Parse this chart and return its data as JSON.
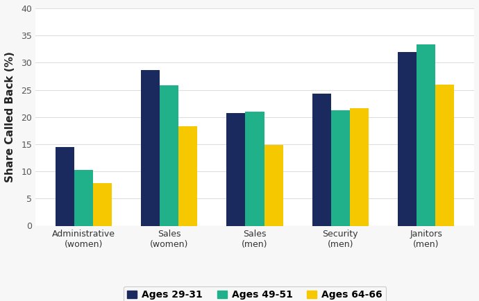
{
  "categories": [
    "Administrative\n(women)",
    "Sales\n(women)",
    "Sales\n(men)",
    "Security\n(men)",
    "Janitors\n(men)"
  ],
  "series": {
    "Ages 29-31": [
      14.5,
      28.6,
      20.7,
      24.3,
      32.0
    ],
    "Ages 49-51": [
      10.3,
      25.8,
      21.0,
      21.3,
      33.3
    ],
    "Ages 64-66": [
      7.8,
      18.3,
      14.8,
      21.6,
      25.9
    ]
  },
  "colors": {
    "Ages 29-31": "#1b2a5e",
    "Ages 49-51": "#20b08a",
    "Ages 64-66": "#f5c800"
  },
  "ylabel": "Share Called Back (%)",
  "ylim": [
    0,
    40
  ],
  "yticks": [
    0,
    5,
    10,
    15,
    20,
    25,
    30,
    35,
    40
  ],
  "fig_background": "#f7f7f7",
  "plot_background": "#ffffff",
  "grid_color": "#dddddd",
  "bar_width": 0.22,
  "legend_fontsize": 10,
  "ylabel_fontsize": 11,
  "tick_fontsize": 9
}
